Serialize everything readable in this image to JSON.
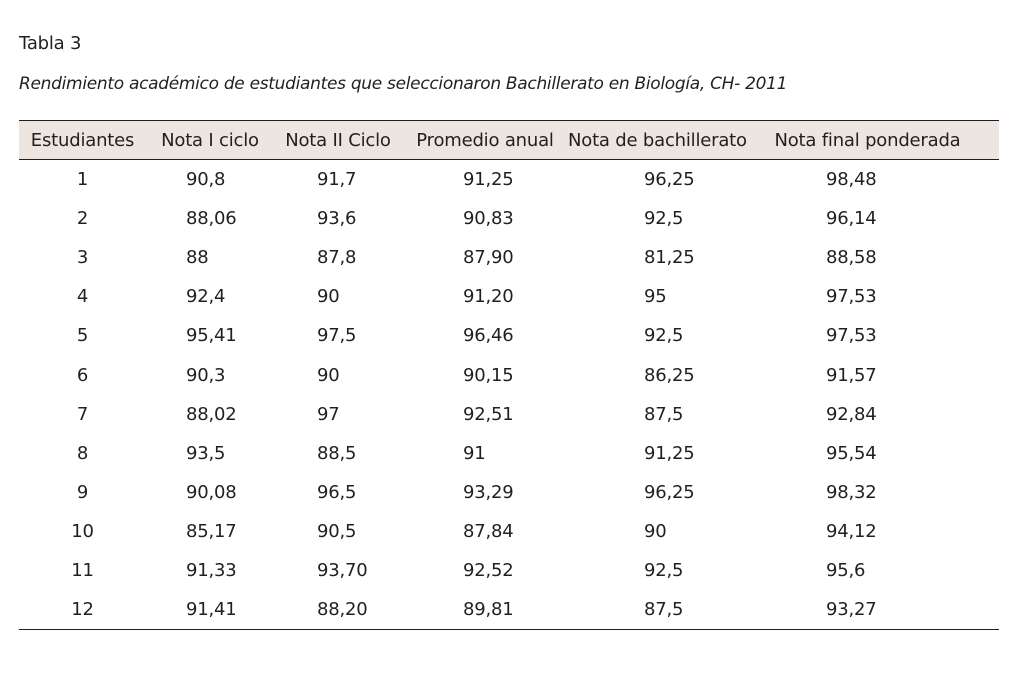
{
  "label": "Tabla 3",
  "caption": "Rendimiento académico de estudiantes que seleccionaron Bachillerato en Biología, CH- 2011",
  "columns": [
    "Estudiantes",
    "Nota I ciclo",
    "Nota II Ciclo",
    "Promedio anual",
    "Nota de bachillerato",
    "Nota final ponderada"
  ],
  "rows": [
    [
      "1",
      "90,8",
      "91,7",
      "91,25",
      "96,25",
      "98,48"
    ],
    [
      "2",
      "88,06",
      "93,6",
      "90,83",
      "92,5",
      "96,14"
    ],
    [
      "3",
      "88",
      "87,8",
      "87,90",
      "81,25",
      "88,58"
    ],
    [
      "4",
      "92,4",
      "90",
      "91,20",
      "95",
      "97,53"
    ],
    [
      "5",
      "95,41",
      "97,5",
      "96,46",
      "92,5",
      "97,53"
    ],
    [
      "6",
      "90,3",
      "90",
      "90,15",
      "86,25",
      "91,57"
    ],
    [
      "7",
      "88,02",
      "97",
      "92,51",
      "87,5",
      "92,84"
    ],
    [
      "8",
      "93,5",
      "88,5",
      "91",
      "91,25",
      "95,54"
    ],
    [
      "9",
      "90,08",
      "96,5",
      "93,29",
      "96,25",
      "98,32"
    ],
    [
      "10",
      "85,17",
      "90,5",
      "87,84",
      "90",
      "94,12"
    ],
    [
      "11",
      "91,33",
      "93,70",
      "92,52",
      "92,5",
      "95,6"
    ],
    [
      "12",
      "91,41",
      "88,20",
      "89,81",
      "87,5",
      "93,27"
    ]
  ]
}
